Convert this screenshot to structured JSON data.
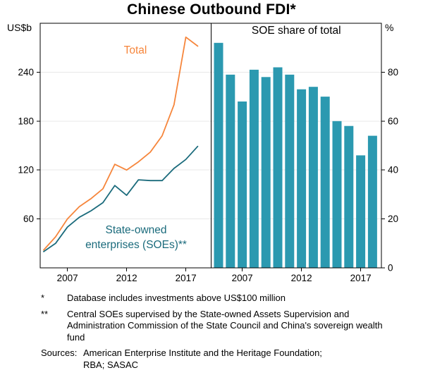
{
  "title": "Chinese Outbound FDI*",
  "colors": {
    "total_line": "#F6863C",
    "soe_line": "#1B6B7C",
    "bar": "#2B99B0",
    "grid": "#E8E8E8",
    "frame": "#000000"
  },
  "annotations": {
    "total": "Total",
    "soe_line1": "State-owned",
    "soe_line2": "enterprises (SOEs)**"
  },
  "chart_data": [
    {
      "type": "line",
      "panel": "left",
      "unit_label": "US$b",
      "x": [
        2005,
        2006,
        2007,
        2008,
        2009,
        2010,
        2011,
        2012,
        2013,
        2014,
        2015,
        2016,
        2017,
        2018
      ],
      "series": [
        {
          "name": "Total",
          "color_key": "total_line",
          "values": [
            22,
            38,
            60,
            75,
            85,
            97,
            127,
            120,
            130,
            142,
            162,
            200,
            283,
            272
          ]
        },
        {
          "name": "State-owned enterprises (SOEs)**",
          "color_key": "soe_line",
          "values": [
            20,
            30,
            50,
            62,
            70,
            80,
            101,
            89,
            108,
            107,
            107,
            122,
            133,
            149
          ]
        }
      ],
      "ylim": [
        0,
        300
      ],
      "yticks": [
        60,
        120,
        180,
        240
      ],
      "xtick_labels": [
        2007,
        2012,
        2017
      ],
      "grid": true,
      "legend": "inline-labels"
    },
    {
      "type": "bar",
      "panel": "right",
      "title": "SOE share of total",
      "unit_label": "%",
      "categories": [
        2005,
        2006,
        2007,
        2008,
        2009,
        2010,
        2011,
        2012,
        2013,
        2014,
        2015,
        2016,
        2017,
        2018
      ],
      "values": [
        92,
        79,
        68,
        81,
        78,
        82,
        79,
        73,
        74,
        70,
        60,
        58,
        46,
        54
      ],
      "ylim": [
        0,
        100
      ],
      "yticks": [
        0,
        20,
        40,
        60,
        80
      ],
      "xtick_labels": [
        2007,
        2012,
        2017
      ],
      "grid": true
    }
  ],
  "footnotes": [
    {
      "marker": "*",
      "text": "Database includes investments above US$100 million"
    },
    {
      "marker": "**",
      "text": "Central SOEs supervised by the State-owned Assets Supervision and Administration Commission of the State Council and China's sovereign wealth fund"
    }
  ],
  "sources": {
    "label": "Sources:",
    "lines": [
      "American Enterprise Institute and the Heritage Foundation;",
      "RBA; SASAC"
    ]
  }
}
